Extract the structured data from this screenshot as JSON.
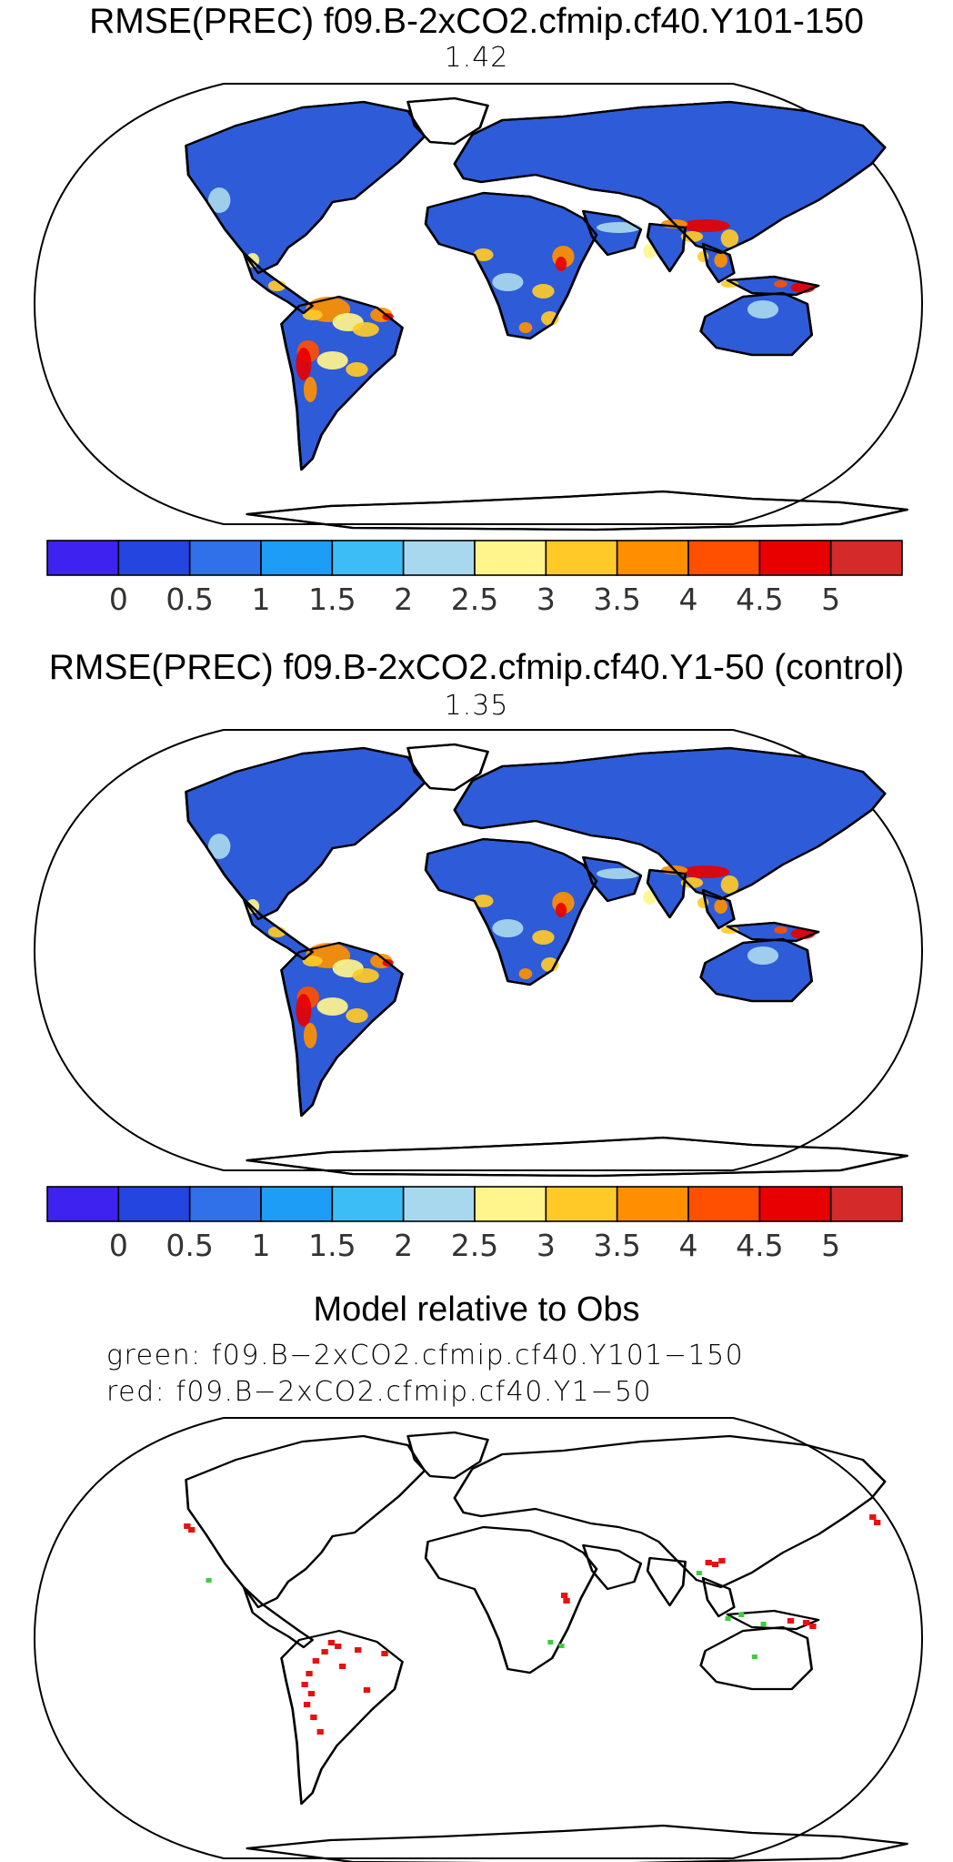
{
  "panels": [
    {
      "title": "RMSE(PREC) f09.B-2xCO2.cfmip.cf40.Y101-150",
      "value": "1.42",
      "colorbar": {
        "colors": [
          "#3d22f0",
          "#2545e0",
          "#3070e8",
          "#1d9df5",
          "#3cbdf5",
          "#a8d8ee",
          "#fff58c",
          "#ffca28",
          "#ff8f00",
          "#ff4f00",
          "#e80000",
          "#d42a2a"
        ],
        "labels": [
          "0",
          "0.5",
          "1",
          "1.5",
          "2",
          "2.5",
          "3",
          "3.5",
          "4",
          "4.5",
          "5"
        ]
      }
    },
    {
      "title": "RMSE(PREC) f09.B-2xCO2.cfmip.cf40.Y1-50 (control)",
      "value": "1.35",
      "colorbar": {
        "colors": [
          "#3d22f0",
          "#2545e0",
          "#3070e8",
          "#1d9df5",
          "#3cbdf5",
          "#a8d8ee",
          "#fff58c",
          "#ffca28",
          "#ff8f00",
          "#ff4f00",
          "#e80000",
          "#d42a2a"
        ],
        "labels": [
          "0",
          "0.5",
          "1",
          "1.5",
          "2",
          "2.5",
          "3",
          "3.5",
          "4",
          "4.5",
          "5"
        ]
      }
    }
  ],
  "comparison": {
    "title": "Model relative to Obs",
    "legend_green": "green: f09.B−2xCO2.cfmip.cf40.Y101−150",
    "legend_red": "red: f09.B−2xCO2.cfmip.cf40.Y1−50",
    "colors": {
      "green": "#3ccf3c",
      "red": "#e81010"
    }
  }
}
